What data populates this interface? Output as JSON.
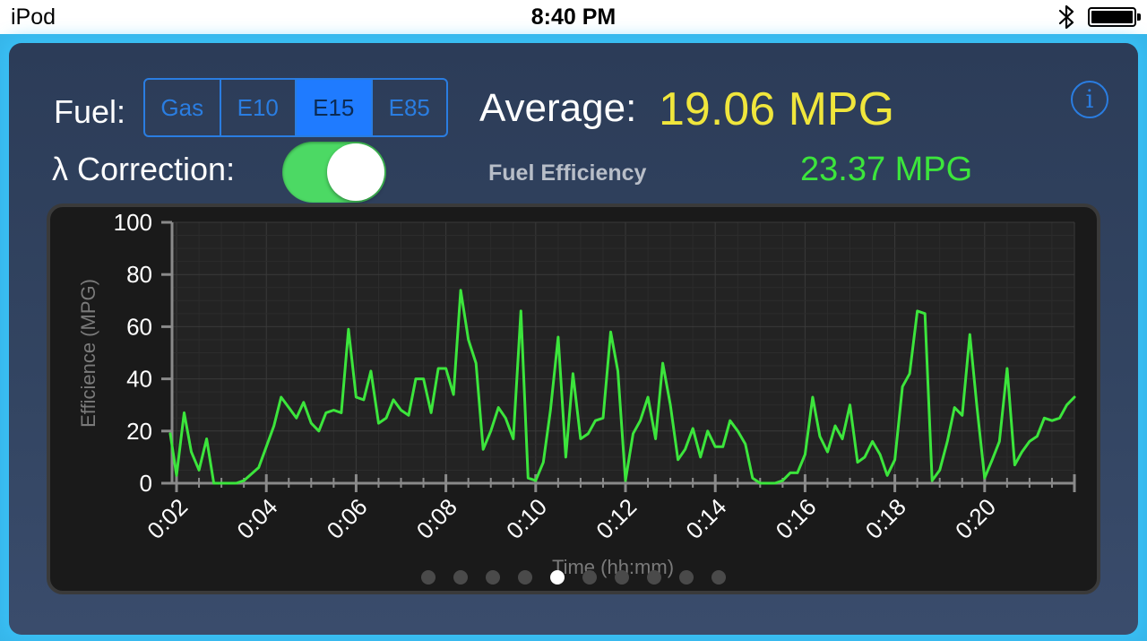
{
  "status_bar": {
    "device": "iPod",
    "time": "8:40 PM",
    "bluetooth_icon": "bluetooth-icon",
    "battery_icon": "battery-full-icon"
  },
  "fuel": {
    "label": "Fuel:",
    "options": [
      "Gas",
      "E10",
      "E15",
      "E85"
    ],
    "selected": "E15"
  },
  "average": {
    "label": "Average:",
    "value": "19.06 MPG"
  },
  "info_icon": "i",
  "lambda_correction": {
    "label": "λ Correction:",
    "enabled": true
  },
  "fuel_efficiency": {
    "label": "Fuel Efficiency",
    "value": "23.37 MPG"
  },
  "page_indicator": {
    "count": 10,
    "active": 4
  },
  "colors": {
    "accent_blue": "#2a7de1",
    "average_yellow": "#f0e63c",
    "efficiency_green": "#3ce53c",
    "toggle_green": "#4cd964",
    "glow": "#37b6ea"
  },
  "chart_data": {
    "type": "line",
    "xlabel": "Time (hh:mm)",
    "ylabel": "Efficience (MPG)",
    "ylim": [
      0,
      100
    ],
    "xlim": [
      1.9,
      22.0
    ],
    "yticks": [
      0,
      20,
      40,
      60,
      80,
      100
    ],
    "xtick_labels": [
      "0:02",
      "0:04",
      "0:06",
      "0:08",
      "0:10",
      "0:12",
      "0:14",
      "0:16",
      "0:18",
      "0:20"
    ],
    "xtick_minutes": [
      2,
      4,
      6,
      8,
      10,
      12,
      14,
      16,
      18,
      20
    ],
    "grid": true,
    "series": [
      {
        "color": "#3ce53c",
        "points": [
          [
            1.86,
            19
          ],
          [
            2.0,
            3
          ],
          [
            2.17,
            27
          ],
          [
            2.33,
            12
          ],
          [
            2.5,
            5
          ],
          [
            2.67,
            17
          ],
          [
            2.83,
            0
          ],
          [
            3.0,
            0
          ],
          [
            3.33,
            0
          ],
          [
            3.5,
            1
          ],
          [
            3.83,
            6
          ],
          [
            4.0,
            14
          ],
          [
            4.17,
            22
          ],
          [
            4.33,
            33
          ],
          [
            4.5,
            29
          ],
          [
            4.67,
            25
          ],
          [
            4.83,
            31
          ],
          [
            5.0,
            23
          ],
          [
            5.17,
            20
          ],
          [
            5.33,
            27
          ],
          [
            5.5,
            28
          ],
          [
            5.67,
            27
          ],
          [
            5.83,
            59
          ],
          [
            6.0,
            33
          ],
          [
            6.17,
            32
          ],
          [
            6.33,
            43
          ],
          [
            6.5,
            23
          ],
          [
            6.67,
            25
          ],
          [
            6.83,
            32
          ],
          [
            7.0,
            28
          ],
          [
            7.17,
            26
          ],
          [
            7.33,
            40
          ],
          [
            7.5,
            40
          ],
          [
            7.67,
            27
          ],
          [
            7.83,
            44
          ],
          [
            8.0,
            44
          ],
          [
            8.17,
            34
          ],
          [
            8.33,
            74
          ],
          [
            8.5,
            55
          ],
          [
            8.67,
            46
          ],
          [
            8.83,
            13
          ],
          [
            9.0,
            20
          ],
          [
            9.17,
            29
          ],
          [
            9.33,
            25
          ],
          [
            9.5,
            17
          ],
          [
            9.67,
            66
          ],
          [
            9.83,
            2
          ],
          [
            10.0,
            1
          ],
          [
            10.17,
            8
          ],
          [
            10.33,
            28
          ],
          [
            10.5,
            56
          ],
          [
            10.67,
            10
          ],
          [
            10.83,
            42
          ],
          [
            11.0,
            17
          ],
          [
            11.17,
            19
          ],
          [
            11.33,
            24
          ],
          [
            11.5,
            25
          ],
          [
            11.67,
            58
          ],
          [
            11.83,
            43
          ],
          [
            12.0,
            1
          ],
          [
            12.17,
            19
          ],
          [
            12.33,
            24
          ],
          [
            12.5,
            33
          ],
          [
            12.67,
            17
          ],
          [
            12.83,
            46
          ],
          [
            13.0,
            30
          ],
          [
            13.17,
            9
          ],
          [
            13.33,
            13
          ],
          [
            13.5,
            21
          ],
          [
            13.67,
            10
          ],
          [
            13.83,
            20
          ],
          [
            14.0,
            14
          ],
          [
            14.17,
            14
          ],
          [
            14.33,
            24
          ],
          [
            14.5,
            20
          ],
          [
            14.67,
            15
          ],
          [
            14.83,
            2
          ],
          [
            15.0,
            0
          ],
          [
            15.33,
            0
          ],
          [
            15.5,
            1
          ],
          [
            15.67,
            4
          ],
          [
            15.83,
            4
          ],
          [
            16.0,
            11
          ],
          [
            16.17,
            33
          ],
          [
            16.33,
            18
          ],
          [
            16.5,
            12
          ],
          [
            16.67,
            22
          ],
          [
            16.83,
            17
          ],
          [
            17.0,
            30
          ],
          [
            17.17,
            8
          ],
          [
            17.33,
            10
          ],
          [
            17.5,
            16
          ],
          [
            17.67,
            11
          ],
          [
            17.83,
            3
          ],
          [
            18.0,
            9
          ],
          [
            18.17,
            37
          ],
          [
            18.33,
            42
          ],
          [
            18.5,
            66
          ],
          [
            18.67,
            65
          ],
          [
            18.83,
            1
          ],
          [
            19.0,
            5
          ],
          [
            19.17,
            16
          ],
          [
            19.33,
            29
          ],
          [
            19.5,
            26
          ],
          [
            19.67,
            57
          ],
          [
            19.83,
            29
          ],
          [
            20.0,
            2
          ],
          [
            20.17,
            9
          ],
          [
            20.33,
            16
          ],
          [
            20.5,
            44
          ],
          [
            20.67,
            7
          ],
          [
            20.83,
            12
          ],
          [
            21.0,
            16
          ],
          [
            21.17,
            18
          ],
          [
            21.33,
            25
          ],
          [
            21.5,
            24
          ],
          [
            21.67,
            25
          ],
          [
            21.83,
            30
          ],
          [
            22.0,
            33
          ]
        ]
      }
    ]
  }
}
